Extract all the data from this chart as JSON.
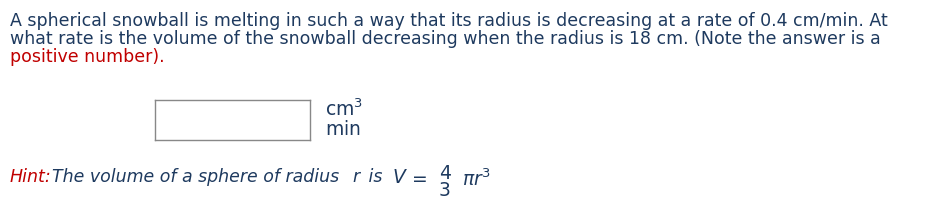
{
  "bg_color": "#ffffff",
  "blue": "#1e3a5f",
  "red": "#c00000",
  "line1": "A spherical snowball is melting in such a way that its radius is decreasing at a rate of 0.4 cm/min. At",
  "line2": "what rate is the volume of the snowball decreasing when the radius is 18 cm. (Note the answer is a",
  "line3": "positive number).",
  "hint_prefix": "Hint:",
  "hint_body": " The volume of a sphere of radius ",
  "hint_r": "r",
  "hint_is": " is ",
  "font_size": 12.5,
  "fig_width": 9.48,
  "fig_height": 2.2,
  "dpi": 100
}
